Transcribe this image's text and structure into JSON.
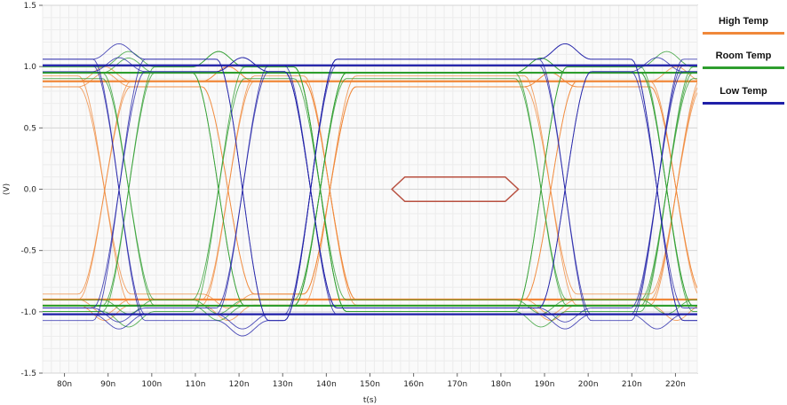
{
  "chart_data": {
    "type": "line",
    "chart_kind": "eye diagram",
    "xlabel": "t(s)",
    "ylabel": "(V)",
    "x_unit": "ns",
    "xlim": [
      75,
      225
    ],
    "ylim": [
      -1.5,
      1.5
    ],
    "x_ticks": [
      80,
      90,
      100,
      110,
      120,
      130,
      140,
      150,
      160,
      170,
      180,
      190,
      200,
      210,
      220
    ],
    "x_tick_labels": [
      "80n",
      "90n",
      "100n",
      "110n",
      "120n",
      "130n",
      "140n",
      "150n",
      "160n",
      "170n",
      "180n",
      "190n",
      "200n",
      "210n",
      "220n"
    ],
    "y_ticks": [
      -1.5,
      -1.0,
      -0.5,
      0.0,
      0.5,
      1.0,
      1.5
    ],
    "y_tick_labels": [
      "-1.5",
      "-1.0",
      "-0.5",
      "0.0",
      "0.5",
      "1.0",
      "1.5"
    ],
    "grid": true,
    "legend_position": "right",
    "series": [
      {
        "name": "High Temp",
        "color": "#F0883A",
        "levels": {
          "high": 0.88,
          "low": -0.9
        },
        "eye_opening": {
          "high": 0.52,
          "low": -0.52
        },
        "center_ripple": 0.06
      },
      {
        "name": "Room Temp",
        "color": "#2E9E2E",
        "levels": {
          "high": 0.95,
          "low": -0.95
        },
        "eye_opening": {
          "high": 0.57,
          "low": -0.57
        },
        "center_ripple": 0.08
      },
      {
        "name": "Low Temp",
        "color": "#1F1FA8",
        "levels": {
          "high": 1.01,
          "low": -1.02
        },
        "eye_opening": {
          "high": 0.64,
          "low": -0.64
        },
        "center_ripple": 0.1
      }
    ],
    "mask": {
      "color": "#B85040",
      "points": [
        [
          155,
          0.0
        ],
        [
          158,
          0.1
        ],
        [
          181,
          0.1
        ],
        [
          184,
          0.0
        ],
        [
          181,
          -0.1
        ],
        [
          158,
          -0.1
        ]
      ]
    }
  }
}
